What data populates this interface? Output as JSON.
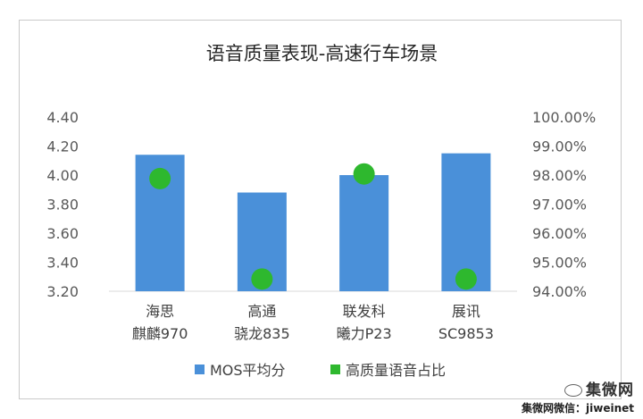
{
  "chart_data": {
    "type": "bar",
    "title": "语音质量表现-高速行车场景",
    "categories": [
      [
        "海思",
        "麒麟970"
      ],
      [
        "高通",
        "骁龙835"
      ],
      [
        "联发科",
        "曦力P23"
      ],
      [
        "展讯",
        "SC9853"
      ]
    ],
    "series": [
      {
        "name": "MOS平均分",
        "kind": "bar",
        "axis": "left",
        "color": "#4a90d9",
        "values": [
          4.14,
          3.88,
          4.0,
          4.15
        ]
      },
      {
        "name": "高质量语音占比",
        "kind": "point",
        "axis": "right",
        "color": "#2eb82e",
        "values": [
          0.9788,
          0.9442,
          0.9804,
          0.9442
        ]
      }
    ],
    "y_left": {
      "min": 3.2,
      "max": 4.4,
      "ticks": [
        "4.40",
        "4.20",
        "4.00",
        "3.80",
        "3.60",
        "3.40",
        "3.20"
      ],
      "tick_values": [
        4.4,
        4.2,
        4.0,
        3.8,
        3.6,
        3.4,
        3.2
      ]
    },
    "y_right": {
      "min": 0.94,
      "max": 1.0,
      "ticks": [
        "100.00%",
        "99.00%",
        "98.00%",
        "97.00%",
        "96.00%",
        "95.00%",
        "94.00%"
      ],
      "tick_values": [
        1.0,
        0.99,
        0.98,
        0.97,
        0.96,
        0.95,
        0.94
      ]
    },
    "grid": false,
    "legend_position": "bottom"
  },
  "watermark": {
    "logo": "集微网",
    "subtitle": "集微网微信：jiweinet"
  }
}
